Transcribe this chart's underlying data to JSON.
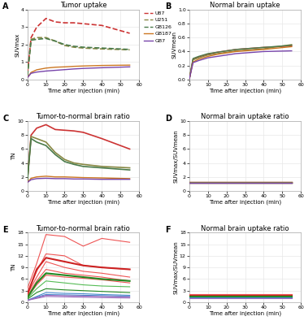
{
  "panel_A": {
    "title": "Tumor uptake",
    "xlabel": "Time after injection (min)",
    "ylabel": "SUVmax",
    "ylim": [
      0,
      4
    ],
    "yticks": [
      0,
      1,
      2,
      3,
      4
    ],
    "xlim": [
      0,
      60
    ],
    "xticks": [
      0,
      10,
      20,
      30,
      40,
      50,
      60
    ],
    "lines": {
      "U87": {
        "color": "#cc3333",
        "style": "--",
        "lw": 1.2,
        "x": [
          0,
          2,
          5,
          10,
          15,
          20,
          25,
          30,
          40,
          55
        ],
        "y": [
          0.3,
          2.4,
          3.0,
          3.5,
          3.3,
          3.25,
          3.25,
          3.2,
          3.1,
          2.65
        ]
      },
      "U251": {
        "color": "#888844",
        "style": "--",
        "lw": 1.2,
        "x": [
          0,
          2,
          5,
          10,
          15,
          20,
          25,
          30,
          40,
          55
        ],
        "y": [
          0.2,
          2.3,
          2.4,
          2.4,
          2.2,
          1.95,
          1.85,
          1.8,
          1.75,
          1.7
        ]
      },
      "GB126": {
        "color": "#4a7a4a",
        "style": "--",
        "lw": 1.2,
        "x": [
          0,
          2,
          5,
          10,
          15,
          20,
          25,
          30,
          40,
          55
        ],
        "y": [
          0.2,
          2.25,
          2.3,
          2.35,
          2.2,
          2.0,
          1.9,
          1.85,
          1.8,
          1.72
        ]
      },
      "GB187": {
        "color": "#cc7722",
        "style": "-",
        "lw": 1.0,
        "x": [
          0,
          2,
          5,
          10,
          15,
          20,
          25,
          30,
          40,
          55
        ],
        "y": [
          0.1,
          0.4,
          0.55,
          0.65,
          0.7,
          0.72,
          0.75,
          0.77,
          0.8,
          0.82
        ]
      },
      "GB7": {
        "color": "#7744aa",
        "style": "-",
        "lw": 1.0,
        "x": [
          0,
          2,
          5,
          10,
          15,
          20,
          25,
          30,
          40,
          55
        ],
        "y": [
          0.1,
          0.35,
          0.42,
          0.48,
          0.52,
          0.56,
          0.6,
          0.63,
          0.67,
          0.72
        ]
      }
    }
  },
  "panel_B": {
    "title": "Normal brain uptake",
    "xlabel": "Time after injection (min)",
    "ylabel": "SUVmean",
    "ylim": [
      0,
      1.0
    ],
    "yticks": [
      0,
      0.2,
      0.4,
      0.6,
      0.8,
      1.0
    ],
    "xlim": [
      0,
      60
    ],
    "xticks": [
      0,
      10,
      20,
      30,
      40,
      50,
      60
    ],
    "lines": {
      "U87": {
        "color": "#cc3333",
        "style": "-",
        "lw": 1.0,
        "x": [
          0,
          2,
          5,
          10,
          15,
          20,
          25,
          30,
          40,
          55
        ],
        "y": [
          0.0,
          0.29,
          0.32,
          0.36,
          0.39,
          0.41,
          0.43,
          0.44,
          0.46,
          0.48
        ]
      },
      "U251": {
        "color": "#888844",
        "style": "-",
        "lw": 1.0,
        "x": [
          0,
          2,
          5,
          10,
          15,
          20,
          25,
          30,
          40,
          55
        ],
        "y": [
          0.0,
          0.28,
          0.31,
          0.35,
          0.37,
          0.39,
          0.41,
          0.42,
          0.44,
          0.5
        ]
      },
      "GB126": {
        "color": "#4a7a4a",
        "style": "-",
        "lw": 1.0,
        "x": [
          0,
          2,
          5,
          10,
          15,
          20,
          25,
          30,
          40,
          55
        ],
        "y": [
          0.0,
          0.3,
          0.33,
          0.37,
          0.39,
          0.41,
          0.43,
          0.44,
          0.46,
          0.49
        ]
      },
      "GB187": {
        "color": "#cc7722",
        "style": "-",
        "lw": 1.0,
        "x": [
          0,
          2,
          5,
          10,
          15,
          20,
          25,
          30,
          40,
          55
        ],
        "y": [
          0.0,
          0.25,
          0.29,
          0.33,
          0.36,
          0.38,
          0.4,
          0.41,
          0.43,
          0.47
        ]
      },
      "GB7": {
        "color": "#7744aa",
        "style": "-",
        "lw": 1.0,
        "x": [
          0,
          2,
          5,
          10,
          15,
          20,
          25,
          30,
          40,
          55
        ],
        "y": [
          0.0,
          0.24,
          0.27,
          0.31,
          0.33,
          0.35,
          0.37,
          0.38,
          0.4,
          0.41
        ]
      }
    }
  },
  "panel_C": {
    "title": "Tumor-to-normal brain ratio",
    "xlabel": "Time after injection (min)",
    "ylabel": "TN",
    "ylim": [
      0,
      10
    ],
    "yticks": [
      0,
      2,
      4,
      6,
      8,
      10
    ],
    "xlim": [
      0,
      60
    ],
    "xticks": [
      0,
      10,
      20,
      30,
      40,
      50,
      60
    ],
    "lines": {
      "U87": {
        "color": "#cc3333",
        "style": "-",
        "lw": 1.2,
        "x": [
          0,
          2,
          5,
          10,
          15,
          20,
          25,
          30,
          40,
          55
        ],
        "y": [
          1.5,
          8.0,
          9.0,
          9.5,
          8.8,
          8.7,
          8.6,
          8.4,
          7.5,
          6.0
        ]
      },
      "U251": {
        "color": "#888844",
        "style": "-",
        "lw": 1.2,
        "x": [
          0,
          2,
          5,
          10,
          15,
          20,
          25,
          30,
          40,
          55
        ],
        "y": [
          1.5,
          7.8,
          7.5,
          7.0,
          5.5,
          4.5,
          4.0,
          3.8,
          3.5,
          3.3
        ]
      },
      "GB126": {
        "color": "#4a7a4a",
        "style": "-",
        "lw": 1.2,
        "x": [
          0,
          2,
          5,
          10,
          15,
          20,
          25,
          30,
          40,
          55
        ],
        "y": [
          1.5,
          7.5,
          7.0,
          6.5,
          5.2,
          4.2,
          3.8,
          3.5,
          3.3,
          3.0
        ]
      },
      "GB187": {
        "color": "#cc7722",
        "style": "-",
        "lw": 1.0,
        "x": [
          0,
          2,
          5,
          10,
          15,
          20,
          25,
          30,
          40,
          55
        ],
        "y": [
          1.2,
          1.8,
          2.0,
          2.1,
          2.0,
          2.0,
          1.95,
          1.9,
          1.85,
          1.75
        ]
      },
      "GB7": {
        "color": "#7744aa",
        "style": "-",
        "lw": 1.0,
        "x": [
          0,
          2,
          5,
          10,
          15,
          20,
          25,
          30,
          40,
          55
        ],
        "y": [
          1.2,
          1.6,
          1.75,
          1.8,
          1.75,
          1.75,
          1.7,
          1.7,
          1.65,
          1.65
        ]
      }
    }
  },
  "panel_D": {
    "title": "Normal brain uptake ratio",
    "xlabel": "Time after injection (min)",
    "ylabel": "SUVmax/SUVmean",
    "ylim": [
      0,
      10
    ],
    "yticks": [
      0,
      2,
      4,
      6,
      8,
      10
    ],
    "xlim": [
      0,
      60
    ],
    "xticks": [
      0,
      10,
      20,
      30,
      40,
      50,
      60
    ],
    "lines": {
      "U87": {
        "color": "#cc3333",
        "style": "-",
        "lw": 1.0,
        "x": [
          0,
          5,
          55
        ],
        "y": [
          1.3,
          1.3,
          1.3
        ]
      },
      "U251": {
        "color": "#888844",
        "style": "-",
        "lw": 1.0,
        "x": [
          0,
          5,
          55
        ],
        "y": [
          1.25,
          1.25,
          1.25
        ]
      },
      "GB126": {
        "color": "#4a7a4a",
        "style": "-",
        "lw": 1.0,
        "x": [
          0,
          5,
          55
        ],
        "y": [
          1.2,
          1.2,
          1.2
        ]
      },
      "GB187": {
        "color": "#cc7722",
        "style": "-",
        "lw": 1.0,
        "x": [
          0,
          5,
          55
        ],
        "y": [
          1.15,
          1.15,
          1.15
        ]
      },
      "GB7": {
        "color": "#7744aa",
        "style": "-",
        "lw": 1.0,
        "x": [
          0,
          5,
          55
        ],
        "y": [
          1.1,
          1.1,
          1.1
        ]
      }
    }
  },
  "panel_E": {
    "title": "Tumor-to-normal brain ratio",
    "xlabel": "Time after injection (min)",
    "ylabel": "TN",
    "ylim": [
      0,
      18
    ],
    "yticks": [
      0,
      3,
      6,
      9,
      12,
      15,
      18
    ],
    "xlim": [
      0,
      60
    ],
    "xticks": [
      0,
      10,
      20,
      30,
      40,
      50,
      60
    ],
    "lines": [
      {
        "color": "#ee5555",
        "style": "-",
        "lw": 0.8,
        "x": [
          0,
          5,
          10,
          20,
          30,
          40,
          55
        ],
        "y": [
          3.5,
          10.0,
          17.5,
          17.0,
          14.5,
          16.5,
          15.5
        ]
      },
      {
        "color": "#ee5555",
        "style": "-",
        "lw": 0.8,
        "x": [
          0,
          5,
          10,
          20,
          30,
          40,
          55
        ],
        "y": [
          2.5,
          8.0,
          12.5,
          12.0,
          9.5,
          9.0,
          8.5
        ]
      },
      {
        "color": "#ee5555",
        "style": "-",
        "lw": 0.8,
        "x": [
          0,
          5,
          10,
          20,
          30,
          40,
          55
        ],
        "y": [
          2.0,
          6.5,
          10.5,
          9.0,
          8.0,
          7.5,
          6.5
        ]
      },
      {
        "color": "#ee5555",
        "style": "-",
        "lw": 0.8,
        "x": [
          0,
          5,
          10,
          20,
          30,
          40,
          55
        ],
        "y": [
          1.5,
          5.5,
          8.5,
          7.5,
          7.0,
          6.5,
          5.5
        ]
      },
      {
        "color": "#ee5555",
        "style": "-",
        "lw": 0.8,
        "x": [
          0,
          5,
          10,
          20,
          30,
          40,
          55
        ],
        "y": [
          1.2,
          4.5,
          7.0,
          6.5,
          6.2,
          5.8,
          5.0
        ]
      },
      {
        "color": "#cc2222",
        "style": "-",
        "lw": 1.5,
        "x": [
          0,
          5,
          10,
          20,
          30,
          40,
          55
        ],
        "y": [
          2.0,
          8.5,
          11.5,
          10.5,
          9.5,
          9.0,
          8.5
        ]
      },
      {
        "color": "#55bb55",
        "style": "-",
        "lw": 0.8,
        "x": [
          0,
          5,
          10,
          20,
          30,
          40,
          55
        ],
        "y": [
          1.0,
          3.5,
          5.5,
          5.0,
          4.5,
          4.2,
          4.0
        ]
      },
      {
        "color": "#228822",
        "style": "-",
        "lw": 1.5,
        "x": [
          0,
          5,
          10,
          20,
          30,
          40,
          55
        ],
        "y": [
          1.2,
          5.0,
          7.5,
          7.0,
          6.5,
          6.0,
          5.5
        ]
      },
      {
        "color": "#228822",
        "style": "-",
        "lw": 0.8,
        "x": [
          0,
          5,
          10,
          20,
          30,
          40,
          55
        ],
        "y": [
          0.8,
          2.5,
          3.5,
          3.2,
          3.0,
          2.8,
          2.5
        ]
      },
      {
        "color": "#4488cc",
        "style": "-",
        "lw": 0.8,
        "x": [
          0,
          5,
          10,
          20,
          30,
          40,
          55
        ],
        "y": [
          0.5,
          1.5,
          2.5,
          2.3,
          2.2,
          2.0,
          1.8
        ]
      },
      {
        "color": "#4488cc",
        "style": "-",
        "lw": 0.8,
        "x": [
          0,
          5,
          10,
          20,
          30,
          40,
          55
        ],
        "y": [
          0.5,
          1.3,
          2.0,
          1.9,
          1.8,
          1.7,
          1.5
        ]
      },
      {
        "color": "#9966bb",
        "style": "-",
        "lw": 0.8,
        "x": [
          0,
          5,
          10,
          20,
          30,
          40,
          55
        ],
        "y": [
          0.5,
          1.2,
          1.8,
          1.7,
          1.6,
          1.5,
          1.4
        ]
      },
      {
        "color": "#9966bb",
        "style": "-",
        "lw": 0.8,
        "x": [
          0,
          5,
          10,
          20,
          30,
          40,
          55
        ],
        "y": [
          0.5,
          1.0,
          1.5,
          1.4,
          1.3,
          1.2,
          1.1
        ]
      }
    ]
  },
  "panel_F": {
    "title": "Normal brain uptake ratio",
    "xlabel": "Time after injection (min)",
    "ylabel": "SUVmax/SUVmean",
    "ylim": [
      0,
      18
    ],
    "yticks": [
      0,
      3,
      6,
      9,
      12,
      15,
      18
    ],
    "xlim": [
      0,
      60
    ],
    "xticks": [
      0,
      10,
      20,
      30,
      40,
      50,
      60
    ],
    "lines": [
      {
        "color": "#ee5555",
        "style": "-",
        "lw": 0.8,
        "x": [
          0,
          55
        ],
        "y": [
          2.0,
          2.0
        ]
      },
      {
        "color": "#ee5555",
        "style": "-",
        "lw": 0.8,
        "x": [
          0,
          55
        ],
        "y": [
          1.8,
          1.8
        ]
      },
      {
        "color": "#cc2222",
        "style": "-",
        "lw": 1.5,
        "x": [
          0,
          55
        ],
        "y": [
          1.6,
          1.6
        ]
      },
      {
        "color": "#55bb55",
        "style": "-",
        "lw": 0.8,
        "x": [
          0,
          55
        ],
        "y": [
          1.5,
          1.5
        ]
      },
      {
        "color": "#228822",
        "style": "-",
        "lw": 1.5,
        "x": [
          0,
          55
        ],
        "y": [
          1.4,
          1.4
        ]
      },
      {
        "color": "#228822",
        "style": "-",
        "lw": 0.8,
        "x": [
          0,
          55
        ],
        "y": [
          1.3,
          1.3
        ]
      },
      {
        "color": "#4488cc",
        "style": "-",
        "lw": 0.8,
        "x": [
          0,
          55
        ],
        "y": [
          1.2,
          1.2
        ]
      },
      {
        "color": "#9966bb",
        "style": "-",
        "lw": 0.8,
        "x": [
          0,
          55
        ],
        "y": [
          1.1,
          1.1
        ]
      }
    ]
  },
  "legend": {
    "U87": {
      "color": "#cc3333",
      "style": "--"
    },
    "U251": {
      "color": "#888844",
      "style": "--"
    },
    "GB126": {
      "color": "#4a7a4a",
      "style": "--"
    },
    "GB187": {
      "color": "#cc7722",
      "style": "-"
    },
    "GB7": {
      "color": "#7744aa",
      "style": "-"
    }
  },
  "bg_color": "#ffffff",
  "grid_color": "#e8e8e8",
  "label_fontsize": 5.0,
  "title_fontsize": 6.0,
  "tick_fontsize": 4.5,
  "legend_fontsize": 4.5
}
